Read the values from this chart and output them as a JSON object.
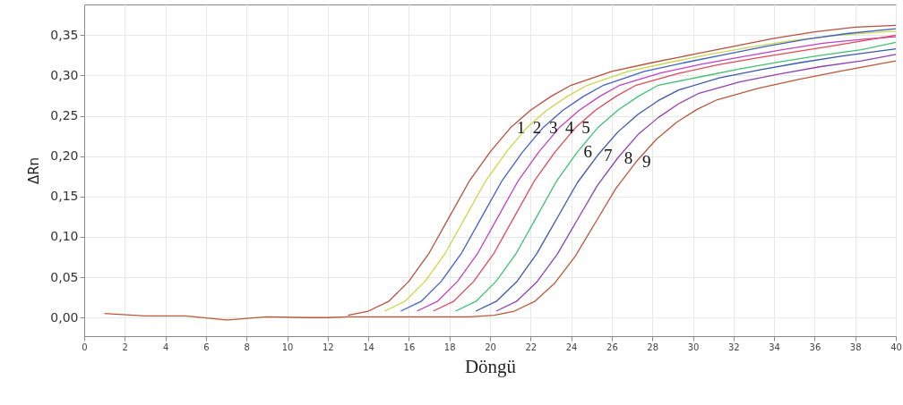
{
  "chart_data": {
    "type": "line",
    "xlabel": "Döngü",
    "ylabel": "ΔRn",
    "xlim": [
      0,
      40
    ],
    "ylim": [
      -0.023,
      0.388
    ],
    "xticks": [
      0,
      2,
      4,
      6,
      8,
      10,
      12,
      14,
      16,
      18,
      20,
      22,
      24,
      26,
      28,
      30,
      32,
      34,
      36,
      38,
      40
    ],
    "yticks": [
      {
        "value": 0,
        "label": "0,00"
      },
      {
        "value": 0.05,
        "label": "0,05"
      },
      {
        "value": 0.1,
        "label": "0,10"
      },
      {
        "value": 0.15,
        "label": "0,15"
      },
      {
        "value": 0.2,
        "label": "0,20"
      },
      {
        "value": 0.25,
        "label": "0,25"
      },
      {
        "value": 0.3,
        "label": "0,30"
      },
      {
        "value": 0.35,
        "label": "0,35"
      }
    ],
    "grid": true,
    "line_style": "solid",
    "series": [
      {
        "name": "1",
        "color": "#b5503c",
        "x": [
          13,
          14,
          15,
          16,
          17,
          18,
          19,
          20,
          21,
          22,
          23,
          24,
          26,
          28,
          30,
          32,
          34,
          36,
          38,
          40
        ],
        "values": [
          0.003,
          0.008,
          0.02,
          0.045,
          0.08,
          0.125,
          0.17,
          0.205,
          0.235,
          0.257,
          0.274,
          0.288,
          0.305,
          0.316,
          0.326,
          0.336,
          0.346,
          0.354,
          0.36,
          0.362
        ]
      },
      {
        "name": "2",
        "color": "#c8d848",
        "x": [
          14.8,
          15.8,
          16.8,
          17.8,
          18.8,
          19.8,
          20.8,
          21.8,
          22.8,
          23.8,
          24.8,
          26.8,
          28.8,
          30.8,
          32.8,
          34.8,
          36.8,
          38.8,
          40
        ],
        "values": [
          0.008,
          0.02,
          0.045,
          0.08,
          0.125,
          0.17,
          0.205,
          0.235,
          0.257,
          0.274,
          0.288,
          0.305,
          0.316,
          0.326,
          0.335,
          0.343,
          0.349,
          0.353,
          0.355
        ]
      },
      {
        "name": "3",
        "color": "#4060c0",
        "x": [
          15.6,
          16.6,
          17.6,
          18.6,
          19.6,
          20.6,
          21.6,
          22.6,
          23.6,
          24.6,
          25.6,
          27.6,
          29.6,
          31.6,
          33.6,
          35.6,
          37.6,
          40
        ],
        "values": [
          0.008,
          0.02,
          0.045,
          0.08,
          0.125,
          0.17,
          0.205,
          0.235,
          0.257,
          0.274,
          0.288,
          0.305,
          0.316,
          0.326,
          0.336,
          0.345,
          0.352,
          0.358
        ]
      },
      {
        "name": "4",
        "color": "#c040c0",
        "x": [
          16.4,
          17.4,
          18.4,
          19.4,
          20.4,
          21.4,
          22.4,
          23.4,
          24.4,
          25.4,
          26.4,
          28.4,
          30.4,
          32.4,
          34.4,
          36.4,
          38.4,
          40
        ],
        "values": [
          0.008,
          0.02,
          0.045,
          0.08,
          0.125,
          0.17,
          0.205,
          0.235,
          0.257,
          0.274,
          0.288,
          0.303,
          0.314,
          0.323,
          0.332,
          0.34,
          0.345,
          0.348
        ]
      },
      {
        "name": "5",
        "color": "#e04858",
        "x": [
          17.2,
          18.2,
          19.2,
          20.2,
          21.2,
          22.2,
          23.2,
          24.2,
          25.2,
          26.2,
          27.2,
          29.2,
          31.2,
          33.2,
          35.2,
          37.2,
          40
        ],
        "values": [
          0.008,
          0.02,
          0.045,
          0.08,
          0.125,
          0.17,
          0.205,
          0.235,
          0.257,
          0.274,
          0.288,
          0.302,
          0.313,
          0.322,
          0.33,
          0.338,
          0.35
        ]
      },
      {
        "name": "6",
        "color": "#40c070",
        "x": [
          18.3,
          19.3,
          20.3,
          21.3,
          22.3,
          23.3,
          24.3,
          25.3,
          26.3,
          27.3,
          28.3,
          30.3,
          32.3,
          34.3,
          36.3,
          38.3,
          40
        ],
        "values": [
          0.008,
          0.02,
          0.045,
          0.08,
          0.125,
          0.17,
          0.205,
          0.235,
          0.257,
          0.274,
          0.288,
          0.298,
          0.308,
          0.317,
          0.325,
          0.332,
          0.341
        ]
      },
      {
        "name": "7",
        "color": "#3858a8",
        "x": [
          19.3,
          20.3,
          21.3,
          22.3,
          23.3,
          24.3,
          25.3,
          26.3,
          27.3,
          28.3,
          29.3,
          31.3,
          33.3,
          35.3,
          37.3,
          40
        ],
        "values": [
          0.008,
          0.02,
          0.044,
          0.079,
          0.123,
          0.167,
          0.201,
          0.23,
          0.252,
          0.269,
          0.282,
          0.297,
          0.307,
          0.316,
          0.324,
          0.333
        ]
      },
      {
        "name": "8",
        "color": "#9040b0",
        "x": [
          20.3,
          21.3,
          22.3,
          23.3,
          24.3,
          25.3,
          26.3,
          27.3,
          28.3,
          29.3,
          30.3,
          32.3,
          34.3,
          36.3,
          38.3,
          40
        ],
        "values": [
          0.008,
          0.02,
          0.044,
          0.078,
          0.121,
          0.164,
          0.198,
          0.227,
          0.248,
          0.265,
          0.278,
          0.292,
          0.302,
          0.311,
          0.318,
          0.326
        ]
      },
      {
        "name": "9",
        "color": "#b85838",
        "x": [
          1,
          3,
          5,
          7,
          9,
          11,
          12,
          13,
          14,
          15,
          16,
          17,
          18,
          19,
          20.2,
          21.2,
          22.2,
          23.2,
          24.2,
          25.2,
          26.2,
          27.2,
          28.2,
          29.2,
          30.2,
          31.2,
          33.2,
          35.2,
          37.2,
          40
        ],
        "values": [
          0.005,
          0.002,
          0.002,
          -0.003,
          0.001,
          0,
          0,
          0.001,
          0.001,
          0.001,
          0.001,
          0.001,
          0.001,
          0.001,
          0.003,
          0.008,
          0.02,
          0.043,
          0.076,
          0.118,
          0.16,
          0.193,
          0.221,
          0.242,
          0.258,
          0.27,
          0.284,
          0.295,
          0.305,
          0.318
        ]
      }
    ]
  }
}
